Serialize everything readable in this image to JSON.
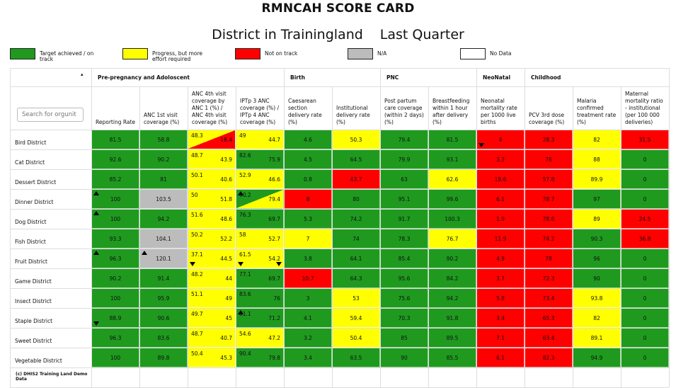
{
  "title": "RMNCAH SCORE CARD",
  "subtitle": {
    "left": "District in Trainingland",
    "right": "Last Quarter"
  },
  "legend": [
    {
      "label": "Target achieved / on track",
      "color": "#1f9a1f"
    },
    {
      "label": "Progress, but more effort required",
      "color": "#ffff00"
    },
    {
      "label": "Not on track",
      "color": "#ff0000"
    },
    {
      "label": "N/A",
      "color": "#bcbcbc"
    },
    {
      "label": "No Data",
      "color": "#ffffff"
    }
  ],
  "search": {
    "placeholder": "Search for orgunit"
  },
  "sort_icon": "▴",
  "groups": [
    {
      "label": "Pre-pregnancy and Adoloscent"
    },
    {
      "label": "Birth"
    },
    {
      "label": "PNC"
    },
    {
      "label": "NeoNatal"
    },
    {
      "label": "Childhood"
    }
  ],
  "columns": [
    "Reporting Rate",
    "ANC 1st visit coverage (%)",
    "ANC 4th visit coverage by ANC 1 (%) / ANC 4th visit coverage (%)",
    "IPTp 3 ANC coverage (%) / IPTp 4 ANC coverage (%)",
    "Caesarean section delivery rate (%)",
    "Institutional delivery rate (%)",
    "Post partum care coverage (within 2 days) (%)",
    "Breastfeeding within 1 hour after delivery (%)",
    "Neonatal mortality rate per 1000 live births",
    "PCV 3rd dose coverage (%)",
    "Malaria confirmed treatment rate (%)",
    "Maternal mortality ratio - institutional (per 100 000 deliveries)"
  ],
  "rows": [
    {
      "name": "Bird District",
      "cells": [
        [
          "81.5",
          "g"
        ],
        [
          "58.8",
          "g"
        ],
        [
          "48.3|18.4",
          "yr"
        ],
        [
          "49|44.7",
          "y"
        ],
        [
          "4.6",
          "g"
        ],
        [
          "50.3",
          "y"
        ],
        [
          "79.4",
          "g"
        ],
        [
          "81.5",
          "g"
        ],
        [
          "4",
          "r",
          "down"
        ],
        [
          "28.3",
          "r"
        ],
        [
          "82",
          "y"
        ],
        [
          "31.5",
          "r"
        ]
      ]
    },
    {
      "name": "Cat District",
      "cells": [
        [
          "92.6",
          "g"
        ],
        [
          "90.2",
          "g"
        ],
        [
          "48.7|43.9",
          "y"
        ],
        [
          "82.6|75.9",
          "g"
        ],
        [
          "4.5",
          "g"
        ],
        [
          "64.5",
          "g"
        ],
        [
          "79.9",
          "g"
        ],
        [
          "93.1",
          "g"
        ],
        [
          "3.3",
          "r"
        ],
        [
          "76",
          "r"
        ],
        [
          "88",
          "y"
        ],
        [
          "0",
          "g"
        ]
      ]
    },
    {
      "name": "Dessert District",
      "cells": [
        [
          "85.2",
          "g"
        ],
        [
          "81",
          "g"
        ],
        [
          "50.1|40.6",
          "y"
        ],
        [
          "52.9|46.6",
          "y"
        ],
        [
          "0.8",
          "g"
        ],
        [
          "43.7",
          "r"
        ],
        [
          "63",
          "g"
        ],
        [
          "62.6",
          "y"
        ],
        [
          "19.6",
          "r"
        ],
        [
          "57.8",
          "r"
        ],
        [
          "89.9",
          "y"
        ],
        [
          "0",
          "g"
        ]
      ]
    },
    {
      "name": "Dinner District",
      "cells": [
        [
          "100",
          "g",
          "up"
        ],
        [
          "103.5",
          "gr"
        ],
        [
          "50|51.8",
          "y"
        ],
        [
          "90.2|79.4",
          "gy",
          "up"
        ],
        [
          "8",
          "r"
        ],
        [
          "80",
          "g"
        ],
        [
          "95.1",
          "g"
        ],
        [
          "99.6",
          "g"
        ],
        [
          "6.1",
          "r"
        ],
        [
          "78.7",
          "r"
        ],
        [
          "97",
          "g"
        ],
        [
          "0",
          "g"
        ]
      ]
    },
    {
      "name": "Dog District",
      "cells": [
        [
          "100",
          "g",
          "up"
        ],
        [
          "94.2",
          "g"
        ],
        [
          "51.6|48.6",
          "y"
        ],
        [
          "76.3|69.7",
          "g"
        ],
        [
          "5.3",
          "g"
        ],
        [
          "74.2",
          "g"
        ],
        [
          "91.7",
          "g"
        ],
        [
          "100.3",
          "g"
        ],
        [
          "1.9",
          "r"
        ],
        [
          "78.6",
          "r"
        ],
        [
          "89",
          "y"
        ],
        [
          "24.5",
          "r"
        ]
      ]
    },
    {
      "name": "Fish District",
      "cells": [
        [
          "93.3",
          "g"
        ],
        [
          "104.1",
          "gr"
        ],
        [
          "50.2|52.2",
          "y"
        ],
        [
          "58|52.7",
          "y"
        ],
        [
          "7",
          "y"
        ],
        [
          "74",
          "g"
        ],
        [
          "78.3",
          "g"
        ],
        [
          "76.7",
          "y"
        ],
        [
          "11.9",
          "r"
        ],
        [
          "74.2",
          "r"
        ],
        [
          "90.3",
          "g"
        ],
        [
          "36.8",
          "r"
        ]
      ]
    },
    {
      "name": "Fruit District",
      "cells": [
        [
          "96.3",
          "g",
          "up"
        ],
        [
          "120.1",
          "gr",
          "up"
        ],
        [
          "37.1|44.5",
          "y",
          "down"
        ],
        [
          "61.5|54.2",
          "y",
          "down2"
        ],
        [
          "3.8",
          "g"
        ],
        [
          "64.1",
          "g"
        ],
        [
          "85.4",
          "g"
        ],
        [
          "90.2",
          "g"
        ],
        [
          "4.9",
          "r"
        ],
        [
          "78",
          "r"
        ],
        [
          "96",
          "g"
        ],
        [
          "0",
          "g"
        ]
      ]
    },
    {
      "name": "Game District",
      "cells": [
        [
          "90.2",
          "g"
        ],
        [
          "91.4",
          "g"
        ],
        [
          "48.2|44",
          "y"
        ],
        [
          "77.1|69.7",
          "g"
        ],
        [
          "10.7",
          "r"
        ],
        [
          "64.3",
          "g"
        ],
        [
          "95.6",
          "g"
        ],
        [
          "84.2",
          "g"
        ],
        [
          "3.7",
          "r"
        ],
        [
          "72.3",
          "r"
        ],
        [
          "90",
          "g"
        ],
        [
          "0",
          "g"
        ]
      ]
    },
    {
      "name": "Insect District",
      "cells": [
        [
          "100",
          "g"
        ],
        [
          "95.9",
          "g"
        ],
        [
          "51.1|49",
          "y"
        ],
        [
          "83.6|76",
          "g"
        ],
        [
          "3",
          "g"
        ],
        [
          "53",
          "y"
        ],
        [
          "75.6",
          "g"
        ],
        [
          "94.2",
          "g"
        ],
        [
          "5.8",
          "r"
        ],
        [
          "73.4",
          "r"
        ],
        [
          "93.8",
          "y"
        ],
        [
          "0",
          "g"
        ]
      ]
    },
    {
      "name": "Staple District",
      "cells": [
        [
          "88.9",
          "g",
          "down"
        ],
        [
          "90.6",
          "g"
        ],
        [
          "49.7|45",
          "y"
        ],
        [
          "81.1|71.2",
          "g",
          "up"
        ],
        [
          "4.1",
          "g"
        ],
        [
          "59.4",
          "y"
        ],
        [
          "70.3",
          "g"
        ],
        [
          "91.8",
          "g"
        ],
        [
          "3.4",
          "r"
        ],
        [
          "65.3",
          "r"
        ],
        [
          "82",
          "y"
        ],
        [
          "0",
          "g"
        ]
      ]
    },
    {
      "name": "Sweet District",
      "cells": [
        [
          "96.3",
          "g"
        ],
        [
          "83.6",
          "g"
        ],
        [
          "48.7|40.7",
          "y"
        ],
        [
          "54.6|47.2",
          "y"
        ],
        [
          "3.2",
          "g"
        ],
        [
          "50.4",
          "y"
        ],
        [
          "85",
          "g"
        ],
        [
          "89.5",
          "g"
        ],
        [
          "7.1",
          "r"
        ],
        [
          "63.4",
          "r"
        ],
        [
          "89.1",
          "y"
        ],
        [
          "0",
          "g"
        ]
      ]
    },
    {
      "name": "Vegetable District",
      "cells": [
        [
          "100",
          "g"
        ],
        [
          "89.8",
          "g"
        ],
        [
          "50.4|45.3",
          "y"
        ],
        [
          "90.4|79.8",
          "g"
        ],
        [
          "3.4",
          "g"
        ],
        [
          "63.5",
          "g"
        ],
        [
          "90",
          "g"
        ],
        [
          "85.5",
          "g"
        ],
        [
          "6.1",
          "r"
        ],
        [
          "82.3",
          "r"
        ],
        [
          "94.9",
          "g"
        ],
        [
          "0",
          "g"
        ]
      ]
    }
  ],
  "footer": "(c) DHIS2 Training Land Demo Data"
}
